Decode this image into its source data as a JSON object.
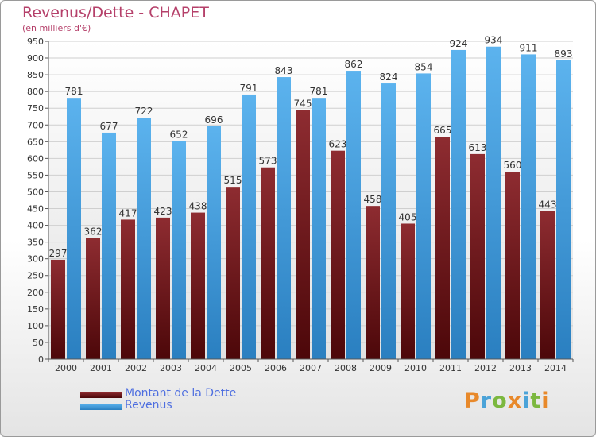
{
  "title": "Revenus/Dette - CHAPET",
  "subtitle": "(en milliers d'€)",
  "logo": {
    "text": "Proxiti",
    "colors": [
      "#e8892b",
      "#4ba3d8",
      "#7cb83f",
      "#e8892b",
      "#4ba3d8",
      "#7cb83f",
      "#e8892b"
    ]
  },
  "chart_data": {
    "type": "bar",
    "title": "Revenus/Dette - CHAPET",
    "ylabel": "(en milliers d'€)",
    "categories": [
      "2000",
      "2001",
      "2002",
      "2003",
      "2004",
      "2005",
      "2006",
      "2007",
      "2008",
      "2009",
      "2010",
      "2011",
      "2012",
      "2013",
      "2014"
    ],
    "series": [
      {
        "name": "Montant de la Dette",
        "color": "#7a1f24",
        "values": [
          297,
          362,
          417,
          423,
          438,
          515,
          573,
          745,
          623,
          458,
          405,
          665,
          613,
          560,
          443
        ]
      },
      {
        "name": "Revenus",
        "color": "#4ba3e3",
        "values": [
          781,
          677,
          722,
          652,
          696,
          791,
          843,
          781,
          862,
          824,
          854,
          924,
          934,
          911,
          893
        ]
      }
    ],
    "ylim": [
      0,
      950
    ],
    "yticks": [
      0,
      50,
      100,
      150,
      200,
      250,
      300,
      350,
      400,
      450,
      500,
      550,
      600,
      650,
      700,
      750,
      800,
      850,
      900,
      950
    ],
    "grid": true,
    "legend": "bottom-left"
  }
}
